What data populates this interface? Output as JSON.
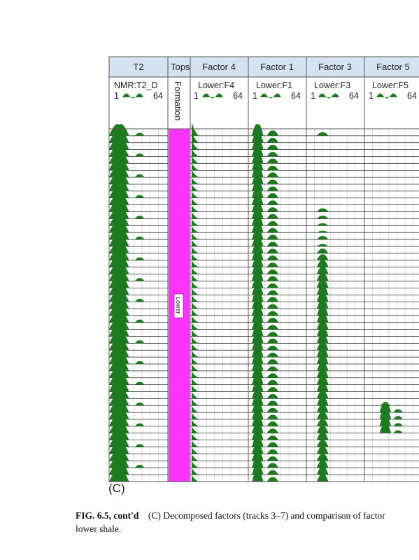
{
  "panel_label": "(C)",
  "caption": {
    "figure_number": "FIG. 6.5, cont'd",
    "line1": "(C) Decomposed factors (tracks 3–7) and comparison of factor",
    "line2": "lower shale."
  },
  "tracks": [
    {
      "title": "T2",
      "curve": "NMR:T2_D",
      "range_min": "1",
      "range_max": "64"
    },
    {
      "title": "Tops",
      "curve": "Formation",
      "zone_label": "Lower"
    },
    {
      "title": "Factor 4",
      "curve": "Lower:F4",
      "range_min": "1",
      "range_max": "64"
    },
    {
      "title": "Factor 1",
      "curve": "Lower:F1",
      "range_min": "1",
      "range_max": "64"
    },
    {
      "title": "Factor 3",
      "curve": "Lower:F3",
      "range_min": "1",
      "range_max": "64"
    },
    {
      "title": "Factor 5",
      "curve": "Lower:F5",
      "range_min": "1",
      "range_max": "64"
    }
  ],
  "colors": {
    "header_fill": "#d4e2f2",
    "border": "#555555",
    "wave_fill": "#1e7a1e",
    "formation_fill": "#ff33ff"
  },
  "icons": [
    "wave-glyph-icon"
  ],
  "chart_data": {
    "type": "log_tracks",
    "sample_rows": 51,
    "series": [
      {
        "name": "NMR:T2_D",
        "amplitudes": [
          1,
          0.95,
          1,
          0.9,
          0.95,
          1,
          0.9,
          0.95,
          1,
          0.95,
          0.9,
          1,
          0.95,
          0.9,
          0.95,
          1,
          0.95,
          0.9,
          0.95,
          1,
          0.9,
          0.95,
          1,
          0.95,
          0.9,
          0.95,
          1,
          0.95,
          0.9,
          1,
          0.95,
          0.9,
          0.95,
          1,
          0.95,
          0.9,
          0.95,
          1,
          0.95,
          0.9,
          0.95,
          1,
          0.95,
          0.9,
          0.95,
          1,
          0.95,
          0.9,
          0.95,
          1,
          0.95
        ]
      },
      {
        "name": "Lower:F4",
        "amplitudes": [
          1,
          0.8,
          0.7,
          0.6,
          0.6,
          0.55,
          0.55,
          0.5,
          0.5,
          0.5,
          0.5,
          0.5,
          0.5,
          0.5,
          0.5,
          0.5,
          0.5,
          0.5,
          0.5,
          0.5,
          0.5,
          0.5,
          0.5,
          0.5,
          0.5,
          0.5,
          0.5,
          0.5,
          0.5,
          0.5,
          0.5,
          0.5,
          0.5,
          0.5,
          0.5,
          0.5,
          0.5,
          0.5,
          0.5,
          0.5,
          0.5,
          0.5,
          0.5,
          0.5,
          0.5,
          0.5,
          0.5,
          0.5,
          0.5,
          0.5,
          0.5
        ]
      },
      {
        "name": "Lower:F1",
        "amplitudes": [
          1,
          0.9,
          0.9,
          0.85,
          0.9,
          0.85,
          0.9,
          0.85,
          0.85,
          0.9,
          0.85,
          0.85,
          0.9,
          0.85,
          0.85,
          0.9,
          0.85,
          0.85,
          0.9,
          0.85,
          0.85,
          0.9,
          0.85,
          0.85,
          0.9,
          0.85,
          0.85,
          0.9,
          0.85,
          0.85,
          0.9,
          0.85,
          0.85,
          0.9,
          0.85,
          0.85,
          0.9,
          0.85,
          0.85,
          0.9,
          0.85,
          0.85,
          0.9,
          0.85,
          0.85,
          0.9,
          0.85,
          0.85,
          0.9,
          0.85,
          0.85
        ]
      },
      {
        "name": "Lower:F3",
        "amplitudes": [
          0.3,
          0,
          0,
          0,
          0,
          0,
          0,
          0,
          0,
          0,
          0,
          0.3,
          0.25,
          0.2,
          0.15,
          0.3,
          0.2,
          0.4,
          0.5,
          0.6,
          0.65,
          0.7,
          0.75,
          0.8,
          0.8,
          0.8,
          0.8,
          0.8,
          0.75,
          0.8,
          0.8,
          0.75,
          0.8,
          0.8,
          0.75,
          0.8,
          0.75,
          0.8,
          0.7,
          0.75,
          0.7,
          0.65,
          0.6,
          0.65,
          0.7,
          0.6,
          0.65,
          0.6,
          0.65,
          0.7,
          0.65
        ]
      },
      {
        "name": "Lower:F5",
        "amplitudes": [
          0,
          0,
          0,
          0,
          0,
          0,
          0,
          0,
          0,
          0,
          0,
          0,
          0,
          0,
          0,
          0,
          0,
          0,
          0,
          0,
          0,
          0,
          0,
          0,
          0,
          0,
          0,
          0,
          0,
          0,
          0,
          0,
          0,
          0,
          0,
          0,
          0,
          0,
          0,
          0.15,
          0.9,
          0.95,
          0.9,
          0.8,
          0,
          0,
          0,
          0,
          0,
          0,
          0
        ]
      }
    ]
  }
}
